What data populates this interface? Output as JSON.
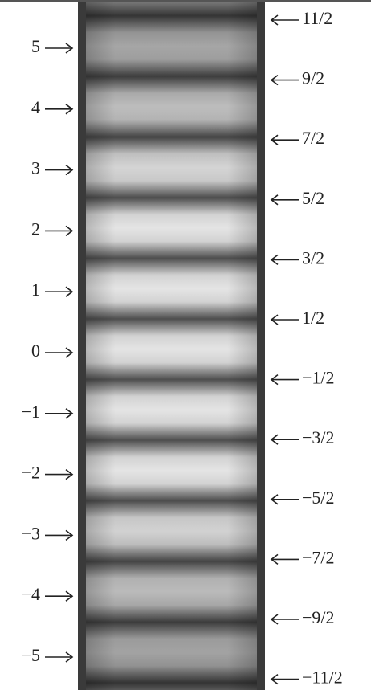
{
  "left_labels": [
    "5",
    "4",
    "3",
    "2",
    "1",
    "0",
    "−1",
    "−2",
    "−3",
    "−4",
    "−5"
  ],
  "right_labels": [
    "11/2",
    "9/2",
    "7/2",
    "5/2",
    "3/2",
    "1/2",
    "−1/2",
    "−3/2",
    "−5/2",
    "−7/2",
    "−9/2",
    "−11/2"
  ]
}
